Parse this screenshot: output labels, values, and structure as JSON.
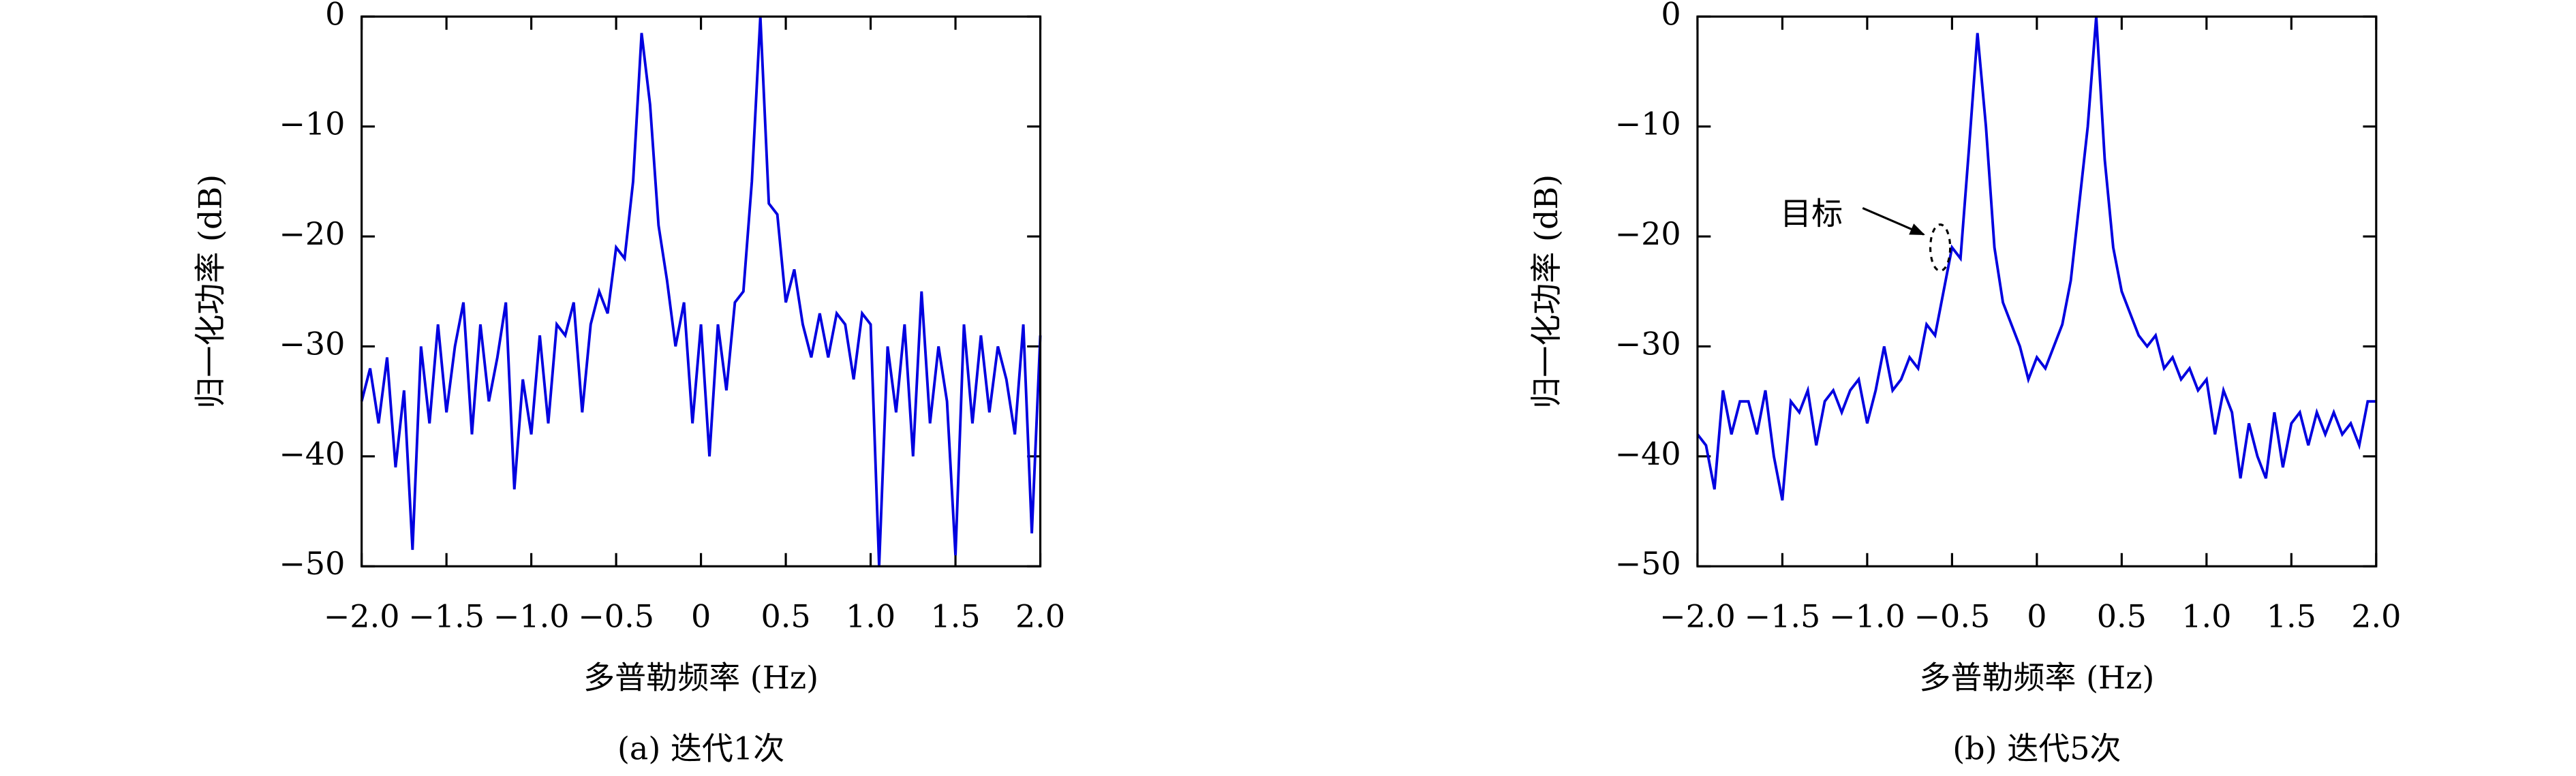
{
  "chart_data": [
    {
      "type": "line",
      "caption": "(a) 迭代1次",
      "xlabel": "多普勒频率 (Hz)",
      "ylabel": "归一化功率 (dB)",
      "xlim": [
        -2,
        2
      ],
      "ylim": [
        -50,
        0
      ],
      "xticks": [
        {
          "value": -2,
          "label": "−2.0"
        },
        {
          "value": -1.5,
          "label": "−1.5"
        },
        {
          "value": -1,
          "label": "−1.0"
        },
        {
          "value": -0.5,
          "label": "−0.5"
        },
        0,
        0.5,
        {
          "value": 1,
          "label": "1.0"
        },
        1.5,
        {
          "value": 2,
          "label": "2.0"
        }
      ],
      "yticks": [
        0,
        {
          "value": -10,
          "label": "−10"
        },
        {
          "value": -20,
          "label": "−20"
        },
        {
          "value": -30,
          "label": "−30"
        },
        {
          "value": -40,
          "label": "−40"
        },
        {
          "value": -50,
          "label": "−50"
        }
      ],
      "color": "#0000e0",
      "x": [
        -2.0,
        -1.95,
        -1.9,
        -1.85,
        -1.8,
        -1.75,
        -1.7,
        -1.65,
        -1.6,
        -1.55,
        -1.5,
        -1.45,
        -1.4,
        -1.35,
        -1.3,
        -1.25,
        -1.2,
        -1.15,
        -1.1,
        -1.05,
        -1.0,
        -0.95,
        -0.9,
        -0.85,
        -0.8,
        -0.75,
        -0.7,
        -0.65,
        -0.6,
        -0.55,
        -0.5,
        -0.45,
        -0.4,
        -0.35,
        -0.3,
        -0.25,
        -0.2,
        -0.15,
        -0.1,
        -0.05,
        0,
        0.05,
        0.1,
        0.15,
        0.2,
        0.25,
        0.3,
        0.35,
        0.4,
        0.45,
        0.5,
        0.55,
        0.6,
        0.65,
        0.7,
        0.75,
        0.8,
        0.85,
        0.9,
        0.95,
        1.0,
        1.05,
        1.1,
        1.15,
        1.2,
        1.25,
        1.3,
        1.35,
        1.4,
        1.45,
        1.5,
        1.55,
        1.6,
        1.65,
        1.7,
        1.75,
        1.8,
        1.85,
        1.9,
        1.95,
        2.0
      ],
      "values": [
        -35,
        -32,
        -37,
        -31,
        -41,
        -34,
        -48.5,
        -30,
        -37,
        -28,
        -36,
        -30,
        -26,
        -38,
        -28,
        -35,
        -31,
        -26,
        -43,
        -33,
        -38,
        -29,
        -37,
        -28,
        -29,
        -26,
        -36,
        -28,
        -25,
        -27,
        -21,
        -22,
        -15,
        -1.5,
        -8,
        -19,
        -24,
        -30,
        -26,
        -37,
        -28,
        -40,
        -28,
        -34,
        -26,
        -25,
        -15,
        0,
        -17,
        -18,
        -26,
        -23,
        -28,
        -31,
        -27,
        -31,
        -27,
        -28,
        -33,
        -27,
        -28,
        -50,
        -30,
        -36,
        -28,
        -40,
        -25,
        -37,
        -30,
        -35,
        -49,
        -28,
        -37,
        -29,
        -36,
        -30,
        -33,
        -38,
        -28,
        -47,
        -29
      ]
    },
    {
      "type": "line",
      "caption": "(b) 迭代5次",
      "xlabel": "多普勒频率 (Hz)",
      "ylabel": "归一化功率 (dB)",
      "annotation": "目标",
      "xlim": [
        -2,
        2
      ],
      "ylim": [
        -50,
        0
      ],
      "xticks": [
        {
          "value": -2,
          "label": "−2.0"
        },
        {
          "value": -1.5,
          "label": "−1.5"
        },
        {
          "value": -1,
          "label": "−1.0"
        },
        {
          "value": -0.5,
          "label": "−0.5"
        },
        0,
        0.5,
        {
          "value": 1,
          "label": "1.0"
        },
        1.5,
        {
          "value": 2,
          "label": "2.0"
        }
      ],
      "yticks": [
        0,
        {
          "value": -10,
          "label": "−10"
        },
        {
          "value": -20,
          "label": "−20"
        },
        {
          "value": -30,
          "label": "−30"
        },
        {
          "value": -40,
          "label": "−40"
        },
        {
          "value": -50,
          "label": "−50"
        }
      ],
      "color": "#0000e0",
      "x": [
        -2.0,
        -1.95,
        -1.9,
        -1.85,
        -1.8,
        -1.75,
        -1.7,
        -1.65,
        -1.6,
        -1.55,
        -1.5,
        -1.45,
        -1.4,
        -1.35,
        -1.3,
        -1.25,
        -1.2,
        -1.15,
        -1.1,
        -1.05,
        -1.0,
        -0.95,
        -0.9,
        -0.85,
        -0.8,
        -0.75,
        -0.7,
        -0.65,
        -0.6,
        -0.55,
        -0.5,
        -0.45,
        -0.4,
        -0.35,
        -0.3,
        -0.25,
        -0.2,
        -0.15,
        -0.1,
        -0.05,
        0,
        0.05,
        0.1,
        0.15,
        0.2,
        0.25,
        0.3,
        0.35,
        0.4,
        0.45,
        0.5,
        0.55,
        0.6,
        0.65,
        0.7,
        0.75,
        0.8,
        0.85,
        0.9,
        0.95,
        1.0,
        1.05,
        1.1,
        1.15,
        1.2,
        1.25,
        1.3,
        1.35,
        1.4,
        1.45,
        1.5,
        1.55,
        1.6,
        1.65,
        1.7,
        1.75,
        1.8,
        1.85,
        1.9,
        1.95,
        2.0
      ],
      "values": [
        -38,
        -39,
        -43,
        -34,
        -38,
        -35,
        -35,
        -38,
        -34,
        -40,
        -44,
        -35,
        -36,
        -34,
        -39,
        -35,
        -34,
        -36,
        -34,
        -33,
        -37,
        -34,
        -30,
        -34,
        -33,
        -31,
        -32,
        -28,
        -29,
        -25,
        -21,
        -22,
        -12,
        -1.5,
        -10,
        -21,
        -26,
        -28,
        -30,
        -33,
        -31,
        -32,
        -30,
        -28,
        -24,
        -17,
        -10,
        0,
        -13,
        -21,
        -25,
        -27,
        -29,
        -30,
        -29,
        -32,
        -31,
        -33,
        -32,
        -34,
        -33,
        -38,
        -34,
        -36,
        -42,
        -37,
        -40,
        -42,
        -36,
        -41,
        -37,
        -36,
        -39,
        -36,
        -38,
        -36,
        -38,
        -37,
        -39,
        -35,
        -35
      ]
    }
  ]
}
